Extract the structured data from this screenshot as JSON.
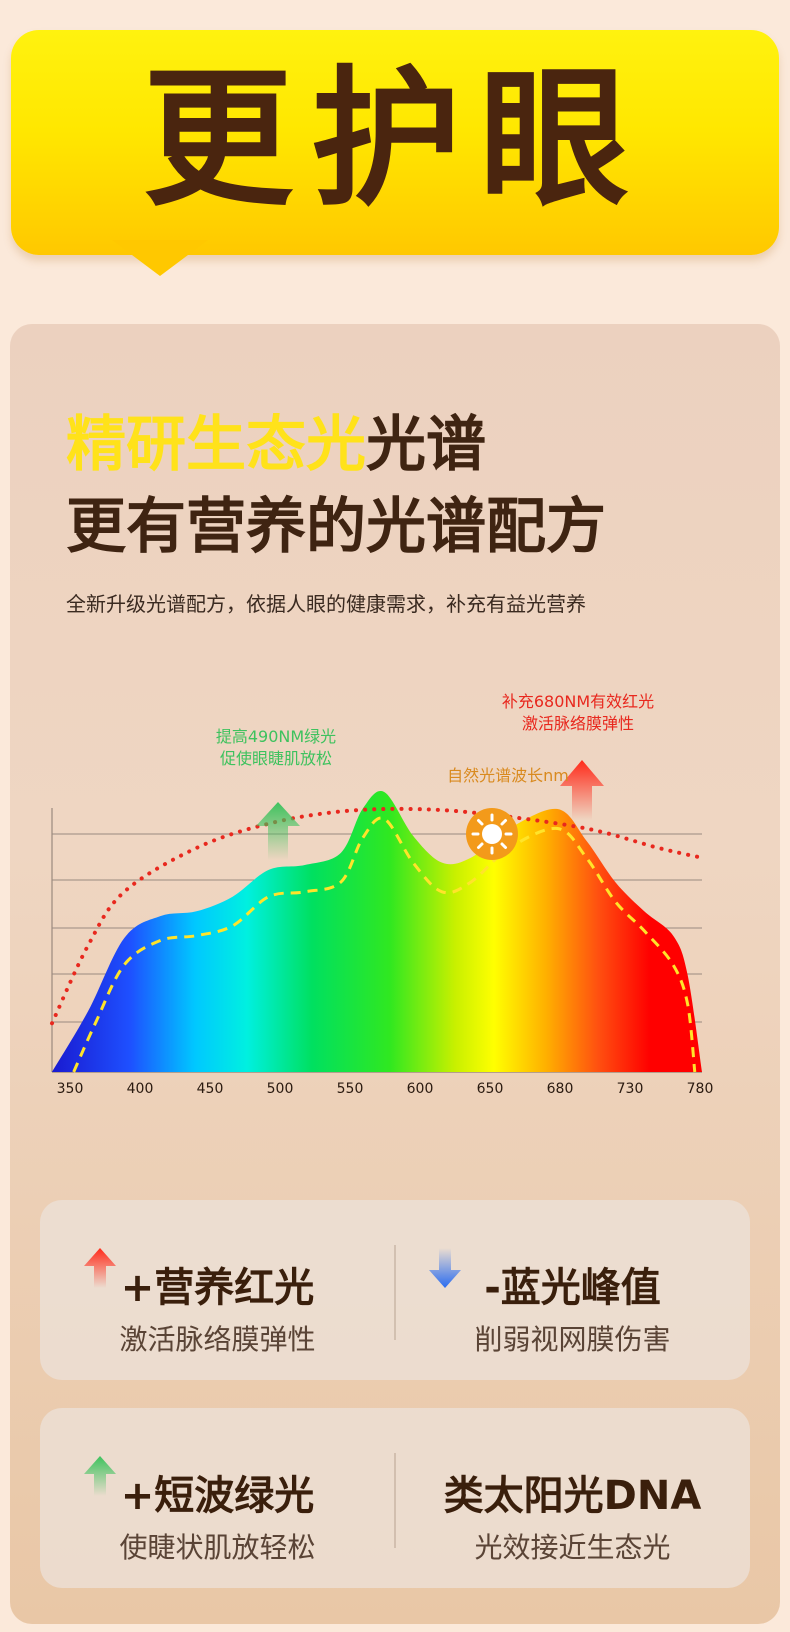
{
  "banner": {
    "title": "更护眼"
  },
  "headline": {
    "line1_highlight": "精研生态光",
    "line1_rest": "光谱",
    "line2": "更有营养的光谱配方"
  },
  "subtitle": "全新升级光谱配方，依据人眼的健康需求，补充有益光营养",
  "colors": {
    "banner_yellow": "#ffe700",
    "title_brown": "#4a250f",
    "highlight_yellow": "#ffe21a",
    "green_label": "#3ec25e",
    "red_label": "#e8281e",
    "orange_label": "#d98a1f",
    "dotted_curve": "#e8281e",
    "dashed_curve": "#ffe42a"
  },
  "chart_data": {
    "type": "area",
    "x_ticks": [
      "350",
      "400",
      "450",
      "500",
      "550",
      "600",
      "650",
      "680",
      "730",
      "780"
    ],
    "xlim": [
      350,
      780
    ],
    "grid": "horizontal",
    "series": [
      {
        "role": "spectrum-fill",
        "x": [
          350,
          375,
          400,
          425,
          450,
          475,
          500,
          525,
          550,
          565,
          580,
          600,
          620,
          640,
          660,
          680,
          700,
          720,
          740,
          760,
          770,
          780
        ],
        "y": [
          0,
          25,
          55,
          64,
          66,
          72,
          83,
          85,
          90,
          108,
          115,
          97,
          86,
          88,
          100,
          108,
          95,
          78,
          66,
          56,
          40,
          0
        ]
      },
      {
        "role": "dashed-curve",
        "x": [
          365,
          380,
          400,
          425,
          450,
          475,
          500,
          525,
          550,
          565,
          580,
          600,
          620,
          640,
          660,
          680,
          700,
          720,
          740,
          760,
          770,
          775
        ],
        "y": [
          0,
          20,
          44,
          54,
          56,
          60,
          72,
          74,
          78,
          96,
          104,
          86,
          74,
          78,
          92,
          100,
          88,
          70,
          58,
          44,
          28,
          0
        ]
      },
      {
        "role": "dotted-curve",
        "x": [
          350,
          375,
          400,
          450,
          500,
          550,
          600,
          650,
          700,
          750,
          780
        ],
        "y": [
          20,
          52,
          74,
          92,
          102,
          107,
          108,
          106,
          100,
          92,
          88
        ]
      }
    ]
  },
  "annotations": {
    "green": {
      "line1": "提高490NM绿光",
      "line2": "促使眼睫肌放松"
    },
    "red": {
      "line1": "补充680NM有效红光",
      "line2": "激活脉络膜弹性"
    },
    "natural": "自然光谱波长nm"
  },
  "cards": [
    {
      "left": {
        "title": "+营养红光",
        "desc": "激活脉络膜弹性",
        "icon": "red-up-arrow-icon"
      },
      "right": {
        "title": "-蓝光峰值",
        "desc": "削弱视网膜伤害",
        "icon": "blue-down-arrow-icon"
      }
    },
    {
      "left": {
        "title": "+短波绿光",
        "desc": "使睫状肌放轻松",
        "icon": "green-up-arrow-icon"
      },
      "right": {
        "title": "类太阳光DNA",
        "desc": "光效接近生态光"
      }
    }
  ]
}
